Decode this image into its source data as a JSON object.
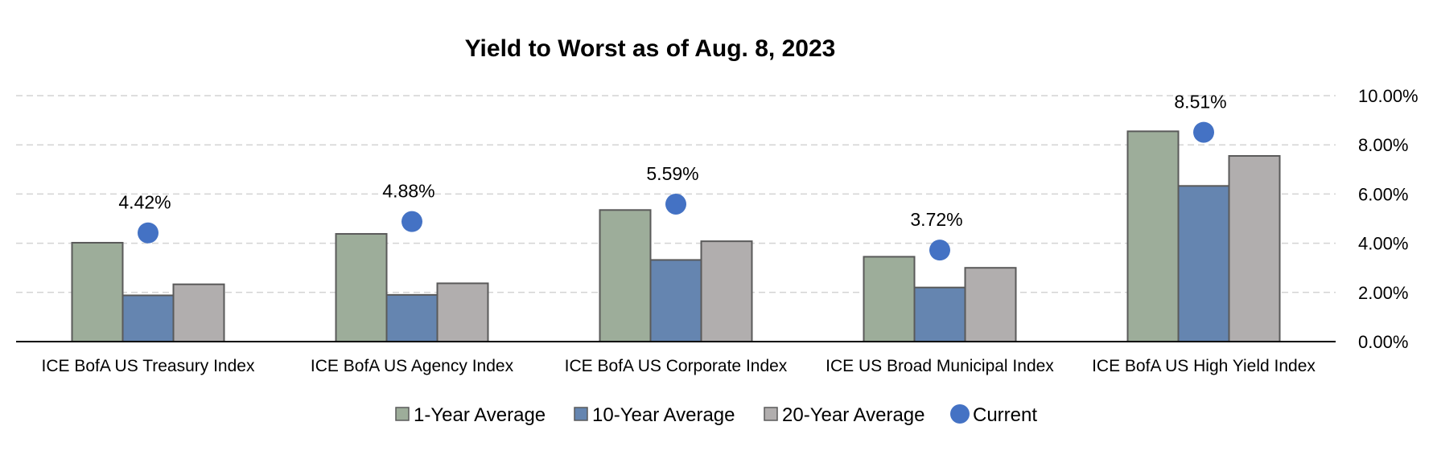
{
  "chart_data": {
    "type": "bar",
    "title": "Yield to Worst as of Aug. 8, 2023",
    "categories": [
      "ICE BofA US Treasury Index",
      "ICE BofA US Agency Index",
      "ICE BofA US Corporate Index",
      "ICE US Broad Municipal Index",
      "ICE BofA US High Yield Index"
    ],
    "series": [
      {
        "name": "1-Year Average",
        "kind": "bar",
        "color": "#9dad9a",
        "values": [
          4.02,
          4.38,
          5.35,
          3.45,
          8.55
        ]
      },
      {
        "name": "10-Year Average",
        "kind": "bar",
        "color": "#6585b0",
        "values": [
          1.88,
          1.9,
          3.32,
          2.2,
          6.33
        ]
      },
      {
        "name": "20-Year Average",
        "kind": "bar",
        "color": "#b1aeae",
        "values": [
          2.33,
          2.37,
          4.08,
          3.0,
          7.55
        ]
      },
      {
        "name": "Current",
        "kind": "marker",
        "color": "#4472c4",
        "values": [
          4.42,
          4.88,
          5.59,
          3.72,
          8.51
        ]
      }
    ],
    "data_labels": [
      "4.42%",
      "4.88%",
      "5.59%",
      "3.72%",
      "8.51%"
    ],
    "y_ticks": [
      "0.00%",
      "2.00%",
      "4.00%",
      "6.00%",
      "8.00%",
      "10.00%"
    ],
    "ylim": [
      0,
      10
    ],
    "y_axis_position": "right",
    "grid": true,
    "legend_position": "bottom"
  }
}
